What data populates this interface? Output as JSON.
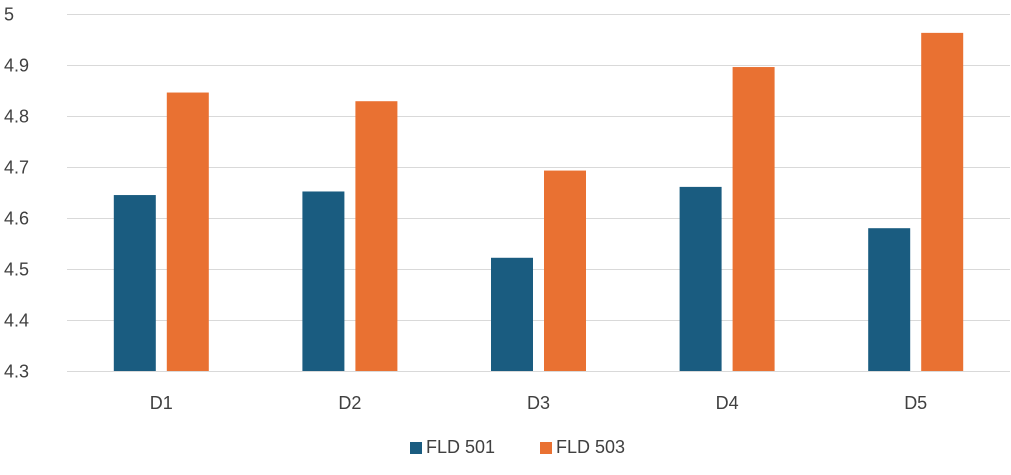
{
  "chart_data": {
    "type": "bar",
    "title": "",
    "xlabel": "",
    "ylabel": "",
    "ylim": [
      4.3,
      5.0
    ],
    "yticks": [
      "4.3",
      "4.4",
      "4.5",
      "4.6",
      "4.7",
      "4.8",
      "4.9",
      "5"
    ],
    "grid": true,
    "legend_position": "bottom",
    "categories": [
      "D1",
      "D2",
      "D3",
      "D4",
      "D5"
    ],
    "series": [
      {
        "name": "FLD 501",
        "color": "#1a5c80",
        "values": [
          4.645,
          4.652,
          4.522,
          4.661,
          4.58
        ]
      },
      {
        "name": "FLD 503",
        "color": "#e97132",
        "values": [
          4.846,
          4.829,
          4.693,
          4.896,
          4.963
        ]
      }
    ]
  }
}
